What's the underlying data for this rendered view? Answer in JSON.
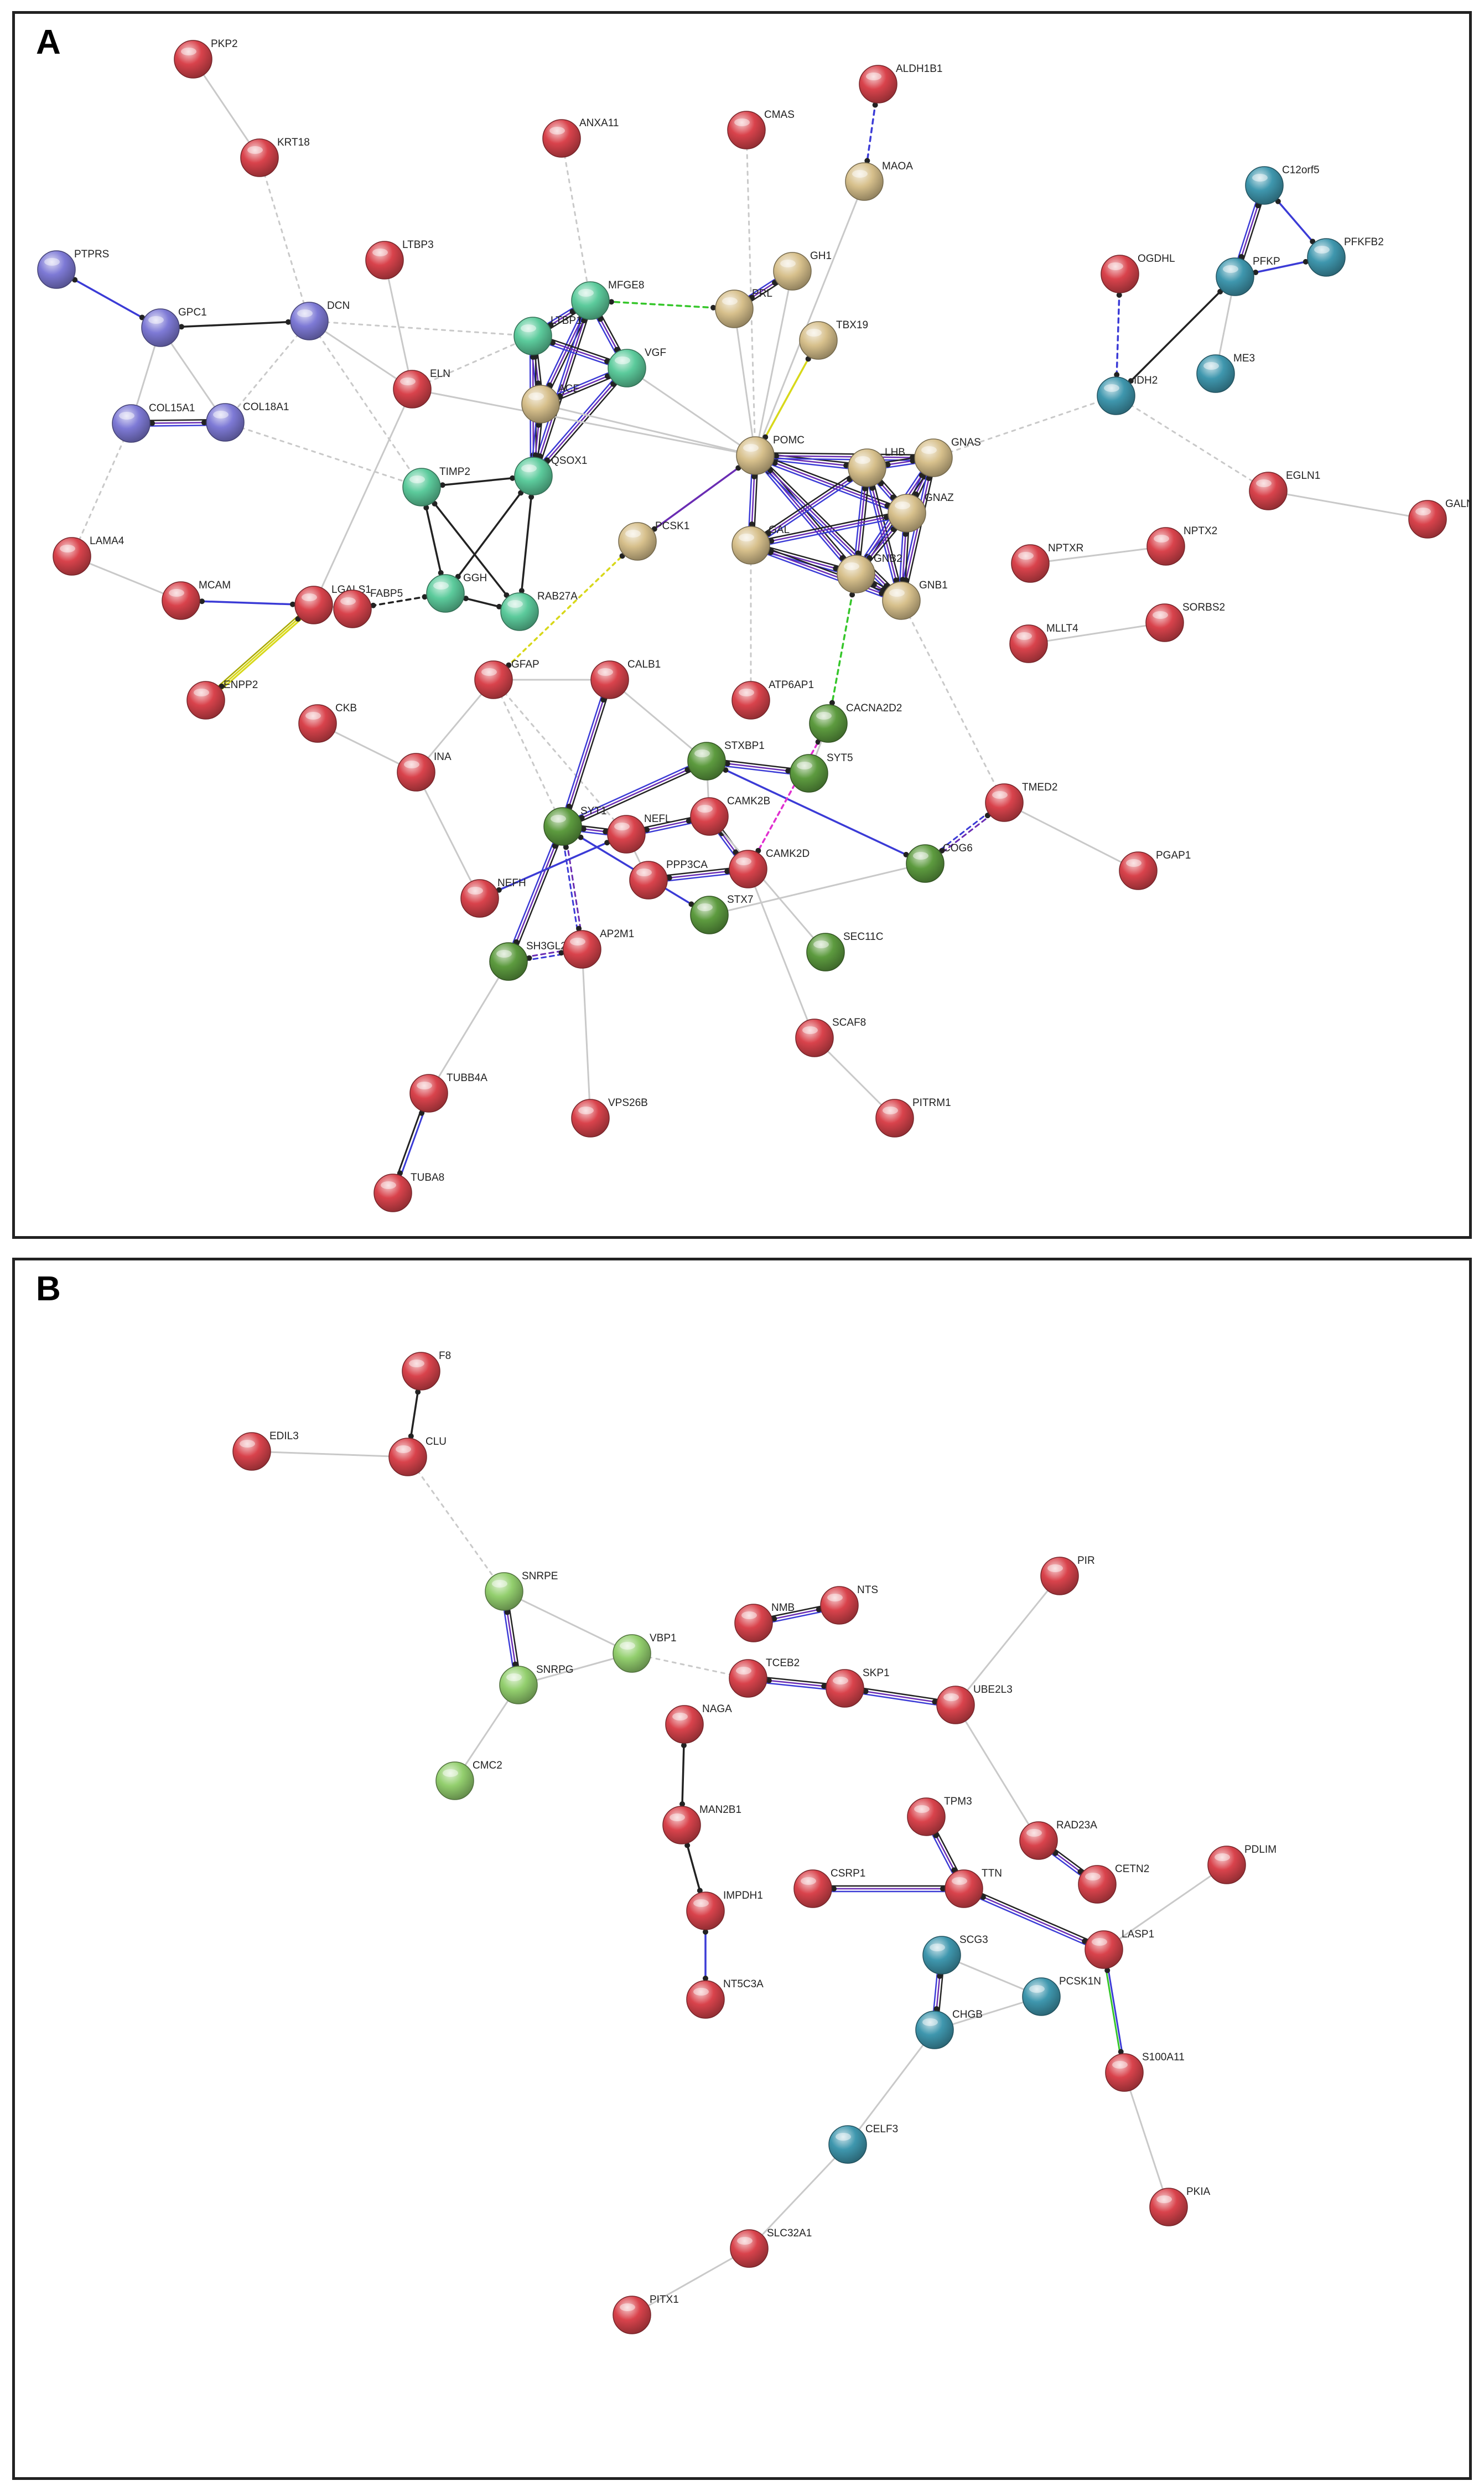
{
  "colors": {
    "red": "#d9434c",
    "purple": "#7e7ad6",
    "teal_green": "#5ccb9c",
    "tan": "#d7c08c",
    "cyan": "#3f97ae",
    "olive_green": "#5d9b3f",
    "light_green": "#93cf6e",
    "edge_black": "#222222",
    "edge_blue": "#3b3bd6",
    "edge_purple": "#6a2cb3",
    "edge_gray": "#c9c9c9",
    "edge_yellow": "#d8d81a",
    "edge_green": "#35c62a",
    "edge_magenta": "#e030d0"
  },
  "panels": [
    {
      "id": "A",
      "letter": "A",
      "nodes": [
        {
          "id": "PKP2",
          "color": "red"
        },
        {
          "id": "KRT18",
          "color": "red"
        },
        {
          "id": "ANXA11",
          "color": "red"
        },
        {
          "id": "CMAS",
          "color": "red"
        },
        {
          "id": "ALDH1B1",
          "color": "red"
        },
        {
          "id": "MAOA",
          "color": "tan"
        },
        {
          "id": "PTPRS",
          "color": "purple"
        },
        {
          "id": "GPC1",
          "color": "purple"
        },
        {
          "id": "DCN",
          "color": "purple"
        },
        {
          "id": "COL15A1",
          "color": "purple"
        },
        {
          "id": "COL18A1",
          "color": "purple"
        },
        {
          "id": "LTBP3",
          "color": "red"
        },
        {
          "id": "ELN",
          "color": "red"
        },
        {
          "id": "MFGE8",
          "color": "teal_green"
        },
        {
          "id": "LTBP1",
          "color": "teal_green"
        },
        {
          "id": "VGF",
          "color": "teal_green"
        },
        {
          "id": "ACE",
          "color": "tan"
        },
        {
          "id": "QSOX1",
          "color": "teal_green"
        },
        {
          "id": "TIMP2",
          "color": "teal_green"
        },
        {
          "id": "GGH",
          "color": "teal_green"
        },
        {
          "id": "RAB27A",
          "color": "teal_green"
        },
        {
          "id": "PRL",
          "color": "tan"
        },
        {
          "id": "GH1",
          "color": "tan"
        },
        {
          "id": "TBX19",
          "color": "tan"
        },
        {
          "id": "POMC",
          "color": "tan"
        },
        {
          "id": "PCSK1",
          "color": "tan"
        },
        {
          "id": "GAL",
          "color": "tan"
        },
        {
          "id": "LHB",
          "color": "tan"
        },
        {
          "id": "GNAS",
          "color": "tan"
        },
        {
          "id": "GNAZ",
          "color": "tan"
        },
        {
          "id": "GNB2",
          "color": "tan"
        },
        {
          "id": "GNB1",
          "color": "tan"
        },
        {
          "id": "OGDHL",
          "color": "red"
        },
        {
          "id": "C12orf5",
          "color": "cyan"
        },
        {
          "id": "PFKP",
          "color": "cyan"
        },
        {
          "id": "PFKFB2",
          "color": "cyan"
        },
        {
          "id": "ME3",
          "color": "cyan"
        },
        {
          "id": "IDH2",
          "color": "cyan"
        },
        {
          "id": "EGLN1",
          "color": "red"
        },
        {
          "id": "GALNT",
          "color": "red"
        },
        {
          "id": "NPTXR",
          "color": "red"
        },
        {
          "id": "NPTX2",
          "color": "red"
        },
        {
          "id": "MLLT4",
          "color": "red"
        },
        {
          "id": "SORBS2",
          "color": "red"
        },
        {
          "id": "LAMA4",
          "color": "red"
        },
        {
          "id": "MCAM",
          "color": "red"
        },
        {
          "id": "LGALS1",
          "color": "red"
        },
        {
          "id": "FABP5",
          "color": "red"
        },
        {
          "id": "ENPP2",
          "color": "red"
        },
        {
          "id": "CKB",
          "color": "red"
        },
        {
          "id": "GFAP",
          "color": "red"
        },
        {
          "id": "CALB1",
          "color": "red"
        },
        {
          "id": "ATP6AP1",
          "color": "red"
        },
        {
          "id": "CACNA2D2",
          "color": "olive_green"
        },
        {
          "id": "INA",
          "color": "red"
        },
        {
          "id": "STXBP1",
          "color": "olive_green"
        },
        {
          "id": "SYT5",
          "color": "olive_green"
        },
        {
          "id": "TMED2",
          "color": "red"
        },
        {
          "id": "SYT1",
          "color": "olive_green"
        },
        {
          "id": "NEFL",
          "color": "red"
        },
        {
          "id": "CAMK2B",
          "color": "red"
        },
        {
          "id": "PPP3CA",
          "color": "red"
        },
        {
          "id": "CAMK2D",
          "color": "red"
        },
        {
          "id": "COG6",
          "color": "olive_green"
        },
        {
          "id": "PGAP1",
          "color": "red"
        },
        {
          "id": "NEFH",
          "color": "red"
        },
        {
          "id": "STX7",
          "color": "olive_green"
        },
        {
          "id": "SH3GL2",
          "color": "olive_green"
        },
        {
          "id": "AP2M1",
          "color": "red"
        },
        {
          "id": "SEC11C",
          "color": "olive_green"
        },
        {
          "id": "SCAF8",
          "color": "red"
        },
        {
          "id": "TUBB4A",
          "color": "red"
        },
        {
          "id": "VPS26B",
          "color": "red"
        },
        {
          "id": "PITRM1",
          "color": "red"
        },
        {
          "id": "TUBA8",
          "color": "red"
        }
      ],
      "edges": [
        [
          "PKP2",
          "KRT18",
          "gray"
        ],
        [
          "KRT18",
          "DCN",
          "gray_dash"
        ],
        [
          "ANXA11",
          "MFGE8",
          "gray_dash"
        ],
        [
          "CMAS",
          "POMC",
          "gray_dash"
        ],
        [
          "ALDH1B1",
          "MAOA",
          "blue_dash"
        ],
        [
          "MAOA",
          "POMC",
          "gray"
        ],
        [
          "PTPRS",
          "GPC1",
          "blue"
        ],
        [
          "GPC1",
          "DCN",
          "black"
        ],
        [
          "GPC1",
          "COL15A1",
          "gray"
        ],
        [
          "GPC1",
          "COL18A1",
          "gray"
        ],
        [
          "COL15A1",
          "COL18A1",
          "purple_multi"
        ],
        [
          "DCN",
          "ELN",
          "gray"
        ],
        [
          "DCN",
          "TIMP2",
          "gray_dash"
        ],
        [
          "DCN",
          "LTBP1",
          "gray_dash"
        ],
        [
          "DCN",
          "COL18A1",
          "gray_dash"
        ],
        [
          "LTBP3",
          "ELN",
          "gray"
        ],
        [
          "ELN",
          "LTBP1",
          "gray_dash"
        ],
        [
          "ELN",
          "LGALS1",
          "gray"
        ],
        [
          "COL15A1",
          "LAMA4",
          "gray_dash"
        ],
        [
          "COL18A1",
          "TIMP2",
          "gray_dash"
        ],
        [
          "MFGE8",
          "LTBP1",
          "purple_multi"
        ],
        [
          "MFGE8",
          "VGF",
          "purple_multi"
        ],
        [
          "MFGE8",
          "ACE",
          "purple_multi"
        ],
        [
          "MFGE8",
          "QSOX1",
          "purple_multi"
        ],
        [
          "LTBP1",
          "VGF",
          "purple_multi"
        ],
        [
          "LTBP1",
          "ACE",
          "purple_multi"
        ],
        [
          "LTBP1",
          "QSOX1",
          "purple_multi"
        ],
        [
          "VGF",
          "ACE",
          "purple_multi"
        ],
        [
          "VGF",
          "QSOX1",
          "purple_multi"
        ],
        [
          "ACE",
          "QSOX1",
          "purple_multi"
        ],
        [
          "PRL",
          "MFGE8",
          "green_dash"
        ],
        [
          "TIMP2",
          "QSOX1",
          "black"
        ],
        [
          "TIMP2",
          "GGH",
          "black"
        ],
        [
          "TIMP2",
          "RAB27A",
          "black"
        ],
        [
          "QSOX1",
          "GGH",
          "black"
        ],
        [
          "QSOX1",
          "RAB27A",
          "black"
        ],
        [
          "GGH",
          "RAB27A",
          "black"
        ],
        [
          "GGH",
          "FABP5",
          "black_dash"
        ],
        [
          "GH1",
          "PRL",
          "purple_multi"
        ],
        [
          "PRL",
          "POMC",
          "gray"
        ],
        [
          "GH1",
          "POMC",
          "gray"
        ],
        [
          "TBX19",
          "POMC",
          "yellow"
        ],
        [
          "POMC",
          "LHB",
          "purple_multi"
        ],
        [
          "POMC",
          "GNAS",
          "purple_multi"
        ],
        [
          "POMC",
          "GNAZ",
          "purple_multi"
        ],
        [
          "POMC",
          "GNB2",
          "purple_multi"
        ],
        [
          "POMC",
          "GNB1",
          "purple_multi"
        ],
        [
          "POMC",
          "GAL",
          "purple_multi"
        ],
        [
          "POMC",
          "PCSK1",
          "purple"
        ],
        [
          "LHB",
          "GNAS",
          "purple_multi"
        ],
        [
          "LHB",
          "GNAZ",
          "purple_multi"
        ],
        [
          "LHB",
          "GNB2",
          "purple_multi"
        ],
        [
          "LHB",
          "GNB1",
          "purple_multi"
        ],
        [
          "GNAS",
          "GNAZ",
          "purple_multi"
        ],
        [
          "GNAS",
          "GNB2",
          "purple_multi"
        ],
        [
          "GNAS",
          "GNB1",
          "purple_multi"
        ],
        [
          "GNAZ",
          "GNB2",
          "purple_multi"
        ],
        [
          "GNAZ",
          "GNB1",
          "purple_multi"
        ],
        [
          "GNB2",
          "GNB1",
          "purple_multi"
        ],
        [
          "GAL",
          "GNB2",
          "purple_multi"
        ],
        [
          "GAL",
          "GNB1",
          "purple_multi"
        ],
        [
          "GAL",
          "LHB",
          "purple_multi"
        ],
        [
          "GAL",
          "GNAZ",
          "purple_multi"
        ],
        [
          "PCSK1",
          "GFAP",
          "yellow_dash"
        ],
        [
          "GNB2",
          "CACNA2D2",
          "green_dash"
        ],
        [
          "GNB1",
          "TMED2",
          "gray_dash"
        ],
        [
          "GNAS",
          "IDH2",
          "gray_dash"
        ],
        [
          "GAL",
          "ATP6AP1",
          "gray_dash"
        ],
        [
          "POMC",
          "ELN",
          "gray"
        ],
        [
          "POMC",
          "VGF",
          "gray"
        ],
        [
          "POMC",
          "ACE",
          "gray"
        ],
        [
          "OGDHL",
          "IDH2",
          "blue_dash"
        ],
        [
          "C12orf5",
          "PFKP",
          "purple_multi"
        ],
        [
          "C12orf5",
          "PFKFB2",
          "blue"
        ],
        [
          "PFKP",
          "PFKFB2",
          "blue"
        ],
        [
          "PFKP",
          "IDH2",
          "black"
        ],
        [
          "PFKP",
          "ME3",
          "gray"
        ],
        [
          "IDH2",
          "EGLN1",
          "gray_dash"
        ],
        [
          "EGLN1",
          "GALNT",
          "gray"
        ],
        [
          "NPTXR",
          "NPTX2",
          "gray"
        ],
        [
          "MLLT4",
          "SORBS2",
          "gray"
        ],
        [
          "LAMA4",
          "MCAM",
          "gray"
        ],
        [
          "MCAM",
          "LGALS1",
          "blue"
        ],
        [
          "LGALS1",
          "ENPP2",
          "yellow_multi"
        ],
        [
          "LGALS1",
          "FABP5",
          "gray"
        ],
        [
          "CKB",
          "INA",
          "gray"
        ],
        [
          "GFAP",
          "CALB1",
          "gray"
        ],
        [
          "GFAP",
          "SYT1",
          "gray_dash"
        ],
        [
          "GFAP",
          "NEFL",
          "gray_dash"
        ],
        [
          "GFAP",
          "INA",
          "gray"
        ],
        [
          "CALB1",
          "SYT1",
          "purple_multi"
        ],
        [
          "CALB1",
          "STXBP1",
          "gray"
        ],
        [
          "INA",
          "NEFH",
          "gray"
        ],
        [
          "STXBP1",
          "SYT1",
          "purple_multi"
        ],
        [
          "STXBP1",
          "SYT5",
          "purple_multi"
        ],
        [
          "STXBP1",
          "CAMK2B",
          "gray"
        ],
        [
          "STXBP1",
          "COG6",
          "blue"
        ],
        [
          "CACNA2D2",
          "CAMK2D",
          "magenta_dash"
        ],
        [
          "CACNA2D2",
          "SYT5",
          "gray"
        ],
        [
          "TMED2",
          "COG6",
          "purple_dash"
        ],
        [
          "TMED2",
          "PGAP1",
          "gray"
        ],
        [
          "SYT1",
          "NEFL",
          "purple_multi"
        ],
        [
          "SYT1",
          "SH3GL2",
          "purple_multi"
        ],
        [
          "SYT1",
          "AP2M1",
          "purple_dash"
        ],
        [
          "SYT1",
          "STX7",
          "blue"
        ],
        [
          "NEFL",
          "NEFH",
          "blue"
        ],
        [
          "NEFL",
          "CAMK2B",
          "purple_multi"
        ],
        [
          "NEFL",
          "PPP3CA",
          "gray"
        ],
        [
          "CAMK2B",
          "CAMK2D",
          "purple_multi"
        ],
        [
          "PPP3CA",
          "CAMK2D",
          "purple_multi"
        ],
        [
          "SH3GL2",
          "AP2M1",
          "purple_dash"
        ],
        [
          "AP2M1",
          "VPS26B",
          "gray"
        ],
        [
          "CAMK2B",
          "SEC11C",
          "gray"
        ],
        [
          "STX7",
          "COG6",
          "gray"
        ],
        [
          "CAMK2D",
          "SCAF8",
          "gray"
        ],
        [
          "SCAF8",
          "PITRM1",
          "gray"
        ],
        [
          "TUBB4A",
          "TUBA8",
          "blue_multi"
        ],
        [
          "TUBB4A",
          "SH3GL2",
          "gray"
        ]
      ]
    },
    {
      "id": "B",
      "letter": "B",
      "nodes": [
        {
          "id": "F8",
          "color": "red"
        },
        {
          "id": "EDIL3",
          "color": "red"
        },
        {
          "id": "CLU",
          "color": "red"
        },
        {
          "id": "SNRPE",
          "color": "light_green"
        },
        {
          "id": "SNRPG",
          "color": "light_green"
        },
        {
          "id": "VBP1",
          "color": "light_green"
        },
        {
          "id": "CMC2",
          "color": "light_green"
        },
        {
          "id": "NMB",
          "color": "red"
        },
        {
          "id": "NTS",
          "color": "red"
        },
        {
          "id": "PIR",
          "color": "red"
        },
        {
          "id": "TCEB2",
          "color": "red"
        },
        {
          "id": "SKP1",
          "color": "red"
        },
        {
          "id": "UBE2L3",
          "color": "red"
        },
        {
          "id": "NAGA",
          "color": "red"
        },
        {
          "id": "MAN2B1",
          "color": "red"
        },
        {
          "id": "TPM3",
          "color": "red"
        },
        {
          "id": "RAD23A",
          "color": "red"
        },
        {
          "id": "CETN2",
          "color": "red"
        },
        {
          "id": "PDLIM",
          "color": "red"
        },
        {
          "id": "CSRP1",
          "color": "red"
        },
        {
          "id": "TTN",
          "color": "red"
        },
        {
          "id": "IMPDH1",
          "color": "red"
        },
        {
          "id": "LASP1",
          "color": "red"
        },
        {
          "id": "SCG3",
          "color": "cyan"
        },
        {
          "id": "PCSK1N",
          "color": "cyan"
        },
        {
          "id": "NT5C3A",
          "color": "red"
        },
        {
          "id": "CHGB",
          "color": "cyan"
        },
        {
          "id": "S100A11",
          "color": "red"
        },
        {
          "id": "CELF3",
          "color": "cyan"
        },
        {
          "id": "PKIA",
          "color": "red"
        },
        {
          "id": "SLC32A1",
          "color": "red"
        },
        {
          "id": "PITX1",
          "color": "red"
        }
      ],
      "edges": [
        [
          "F8",
          "CLU",
          "black"
        ],
        [
          "EDIL3",
          "CLU",
          "gray"
        ],
        [
          "CLU",
          "SNRPE",
          "gray_dash"
        ],
        [
          "SNRPE",
          "SNRPG",
          "purple_multi"
        ],
        [
          "SNRPE",
          "VBP1",
          "gray"
        ],
        [
          "SNRPG",
          "VBP1",
          "gray"
        ],
        [
          "SNRPG",
          "CMC2",
          "gray"
        ],
        [
          "VBP1",
          "TCEB2",
          "gray_dash"
        ],
        [
          "NMB",
          "NTS",
          "purple_multi"
        ],
        [
          "TCEB2",
          "SKP1",
          "purple_multi"
        ],
        [
          "SKP1",
          "UBE2L3",
          "purple_multi"
        ],
        [
          "UBE2L3",
          "PIR",
          "gray"
        ],
        [
          "UBE2L3",
          "RAD23A",
          "gray"
        ],
        [
          "NAGA",
          "MAN2B1",
          "black"
        ],
        [
          "MAN2B1",
          "IMPDH1",
          "black"
        ],
        [
          "IMPDH1",
          "NT5C3A",
          "blue"
        ],
        [
          "TPM3",
          "TTN",
          "purple_multi"
        ],
        [
          "RAD23A",
          "CETN2",
          "purple_multi"
        ],
        [
          "CSRP1",
          "TTN",
          "purple_multi"
        ],
        [
          "TTN",
          "LASP1",
          "purple_multi"
        ],
        [
          "LASP1",
          "PDLIM",
          "gray"
        ],
        [
          "LASP1",
          "S100A11",
          "blue_green_arrow"
        ],
        [
          "SCG3",
          "CHGB",
          "purple_multi"
        ],
        [
          "SCG3",
          "PCSK1N",
          "gray"
        ],
        [
          "CHGB",
          "PCSK1N",
          "gray"
        ],
        [
          "CHGB",
          "CELF3",
          "gray"
        ],
        [
          "S100A11",
          "PKIA",
          "gray"
        ],
        [
          "CELF3",
          "SLC32A1",
          "gray"
        ],
        [
          "SLC32A1",
          "PITX1",
          "gray"
        ]
      ]
    }
  ]
}
